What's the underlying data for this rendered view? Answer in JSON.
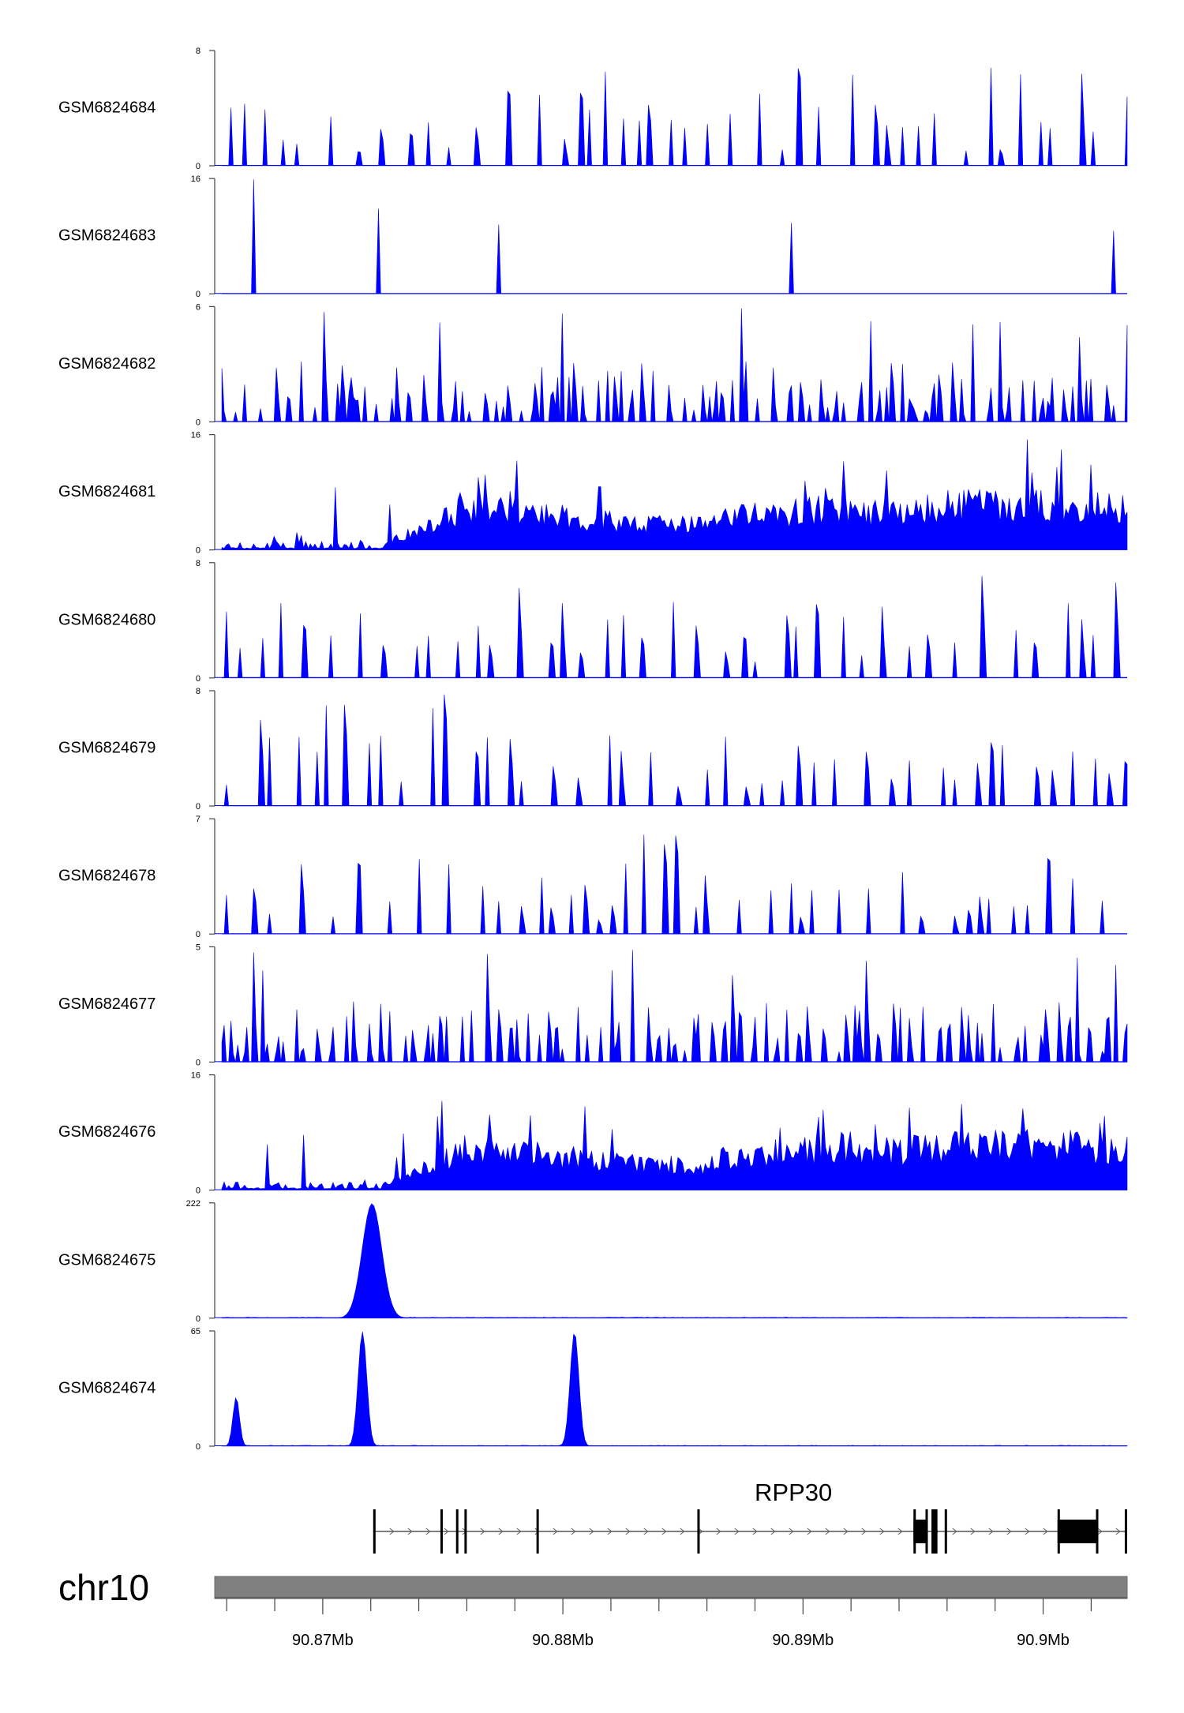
{
  "chart_data": {
    "type": "area",
    "title": "",
    "xlabel": "",
    "ylabel": "",
    "chromosome": "chr10",
    "x_range_mb": [
      90.8655,
      90.9035
    ],
    "x_ticks": [
      "90.87Mb",
      "90.88Mb",
      "90.89Mb",
      "90.9Mb"
    ],
    "x_tick_values_mb": [
      90.87,
      90.88,
      90.89,
      90.9
    ],
    "color": "#0000ff",
    "tracks": [
      {
        "name": "GSM6824684",
        "ymax": 8,
        "ylabel_top": "8",
        "ylabel_bottom": "0",
        "style": "sparse_spiky"
      },
      {
        "name": "GSM6824683",
        "ymax": 16,
        "ylabel_top": "16",
        "ylabel_bottom": "0",
        "style": "very_sparse"
      },
      {
        "name": "GSM6824682",
        "ymax": 6,
        "ylabel_top": "6",
        "ylabel_bottom": "0",
        "style": "dense_spiky"
      },
      {
        "name": "GSM6824681",
        "ymax": 16,
        "ylabel_top": "16",
        "ylabel_bottom": "0",
        "style": "ramp"
      },
      {
        "name": "GSM6824680",
        "ymax": 8,
        "ylabel_top": "8",
        "ylabel_bottom": "0",
        "style": "sparse_spiky"
      },
      {
        "name": "GSM6824679",
        "ymax": 8,
        "ylabel_top": "8",
        "ylabel_bottom": "0",
        "style": "sparse_spiky"
      },
      {
        "name": "GSM6824678",
        "ymax": 7,
        "ylabel_top": "7",
        "ylabel_bottom": "0",
        "style": "sparse_spiky"
      },
      {
        "name": "GSM6824677",
        "ymax": 5,
        "ylabel_top": "5",
        "ylabel_bottom": "0",
        "style": "dense_spiky"
      },
      {
        "name": "GSM6824676",
        "ymax": 16,
        "ylabel_top": "16",
        "ylabel_bottom": "0",
        "style": "ramp"
      },
      {
        "name": "GSM6824675",
        "ymax": 222,
        "ylabel_top": "222",
        "ylabel_bottom": "0",
        "style": "peaks",
        "peaks": [
          {
            "x_mb": 90.8718,
            "height": 222,
            "width_mb": 0.0009
          }
        ]
      },
      {
        "name": "GSM6824674",
        "ymax": 65,
        "ylabel_top": "65",
        "ylabel_bottom": "0",
        "style": "peaks",
        "peaks": [
          {
            "x_mb": 90.8661,
            "height": 28,
            "width_mb": 0.0003
          },
          {
            "x_mb": 90.8714,
            "height": 65,
            "width_mb": 0.0004
          },
          {
            "x_mb": 90.8803,
            "height": 65,
            "width_mb": 0.0004
          }
        ]
      }
    ],
    "gene": {
      "name": "RPP30",
      "strand": "+",
      "start_mb": 90.8721,
      "end_mb": 90.9035,
      "exons_mb": [
        [
          90.8721,
          90.8722
        ],
        [
          90.8749,
          90.87495
        ],
        [
          90.87555,
          90.8756
        ],
        [
          90.8759,
          90.87595
        ],
        [
          90.8789,
          90.87895
        ],
        [
          90.8856,
          90.88565
        ],
        [
          90.8946,
          90.8952
        ],
        [
          90.89535,
          90.8956
        ],
        [
          90.8959,
          90.89595
        ],
        [
          90.9006,
          90.9023
        ],
        [
          90.9034,
          90.9035
        ]
      ]
    }
  }
}
